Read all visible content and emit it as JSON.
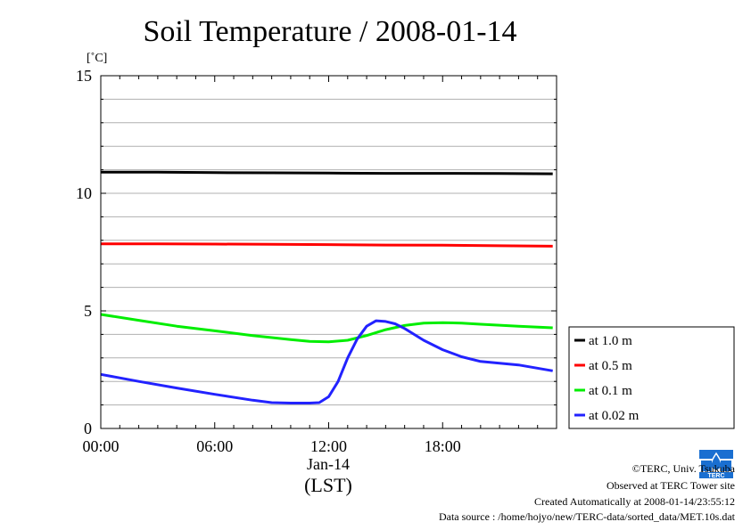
{
  "chart_data": {
    "type": "line",
    "title": "Soil Temperature / 2008-01-14",
    "ylabel": "[˚C]",
    "ylim": [
      0,
      15
    ],
    "xlim": [
      0,
      24
    ],
    "yticks": [
      0,
      5,
      10,
      15
    ],
    "xtick_labels": [
      {
        "x": 0,
        "label": "00:00"
      },
      {
        "x": 6,
        "label": "06:00"
      },
      {
        "x": 12,
        "label": "12:00"
      },
      {
        "x": 18,
        "label": "18:00"
      }
    ],
    "xlabel_date": "Jan-14",
    "xlabel_zone": "(LST)",
    "grid": true,
    "legend_position": "right",
    "series": [
      {
        "name": "at 1.0 m",
        "color": "#000000",
        "x": [
          0,
          3,
          6,
          9,
          12,
          15,
          18,
          21,
          23.8
        ],
        "y": [
          10.9,
          10.9,
          10.88,
          10.87,
          10.86,
          10.85,
          10.85,
          10.84,
          10.83
        ]
      },
      {
        "name": "at 0.5 m",
        "color": "#ff0000",
        "x": [
          0,
          3,
          6,
          9,
          12,
          15,
          18,
          21,
          23.8
        ],
        "y": [
          7.85,
          7.85,
          7.84,
          7.83,
          7.82,
          7.8,
          7.79,
          7.77,
          7.75
        ]
      },
      {
        "name": "at 0.1 m",
        "color": "#00ee00",
        "x": [
          0,
          2,
          4,
          6,
          8,
          10,
          11,
          12,
          13,
          14,
          15,
          16,
          17,
          18,
          19,
          20,
          22,
          23.8
        ],
        "y": [
          4.85,
          4.6,
          4.35,
          4.15,
          3.95,
          3.78,
          3.7,
          3.68,
          3.75,
          3.95,
          4.2,
          4.38,
          4.48,
          4.5,
          4.48,
          4.43,
          4.35,
          4.28
        ]
      },
      {
        "name": "at 0.02 m",
        "color": "#2222ff",
        "x": [
          0,
          2,
          4,
          6,
          8,
          9,
          10,
          11,
          11.5,
          12,
          12.5,
          13,
          13.5,
          14,
          14.5,
          15,
          15.5,
          16,
          16.5,
          17,
          18,
          19,
          20,
          22,
          23.8
        ],
        "y": [
          2.3,
          2.0,
          1.72,
          1.45,
          1.2,
          1.1,
          1.08,
          1.08,
          1.1,
          1.35,
          2.0,
          3.0,
          3.8,
          4.35,
          4.58,
          4.55,
          4.45,
          4.25,
          4.0,
          3.75,
          3.35,
          3.05,
          2.85,
          2.7,
          2.45
        ]
      }
    ]
  },
  "footer": {
    "line1": "©TERC, Univ. Tsukuba",
    "line2": "Observed at TERC Tower site",
    "line3": "Created Automatically at 2008-01-14/23:55:12",
    "line4": "Data source : /home/hojyo/new/TERC-data/sorted_data/MET.10s.dat"
  },
  "logo": {
    "text": "TERC",
    "color": "#1a6fd1"
  }
}
